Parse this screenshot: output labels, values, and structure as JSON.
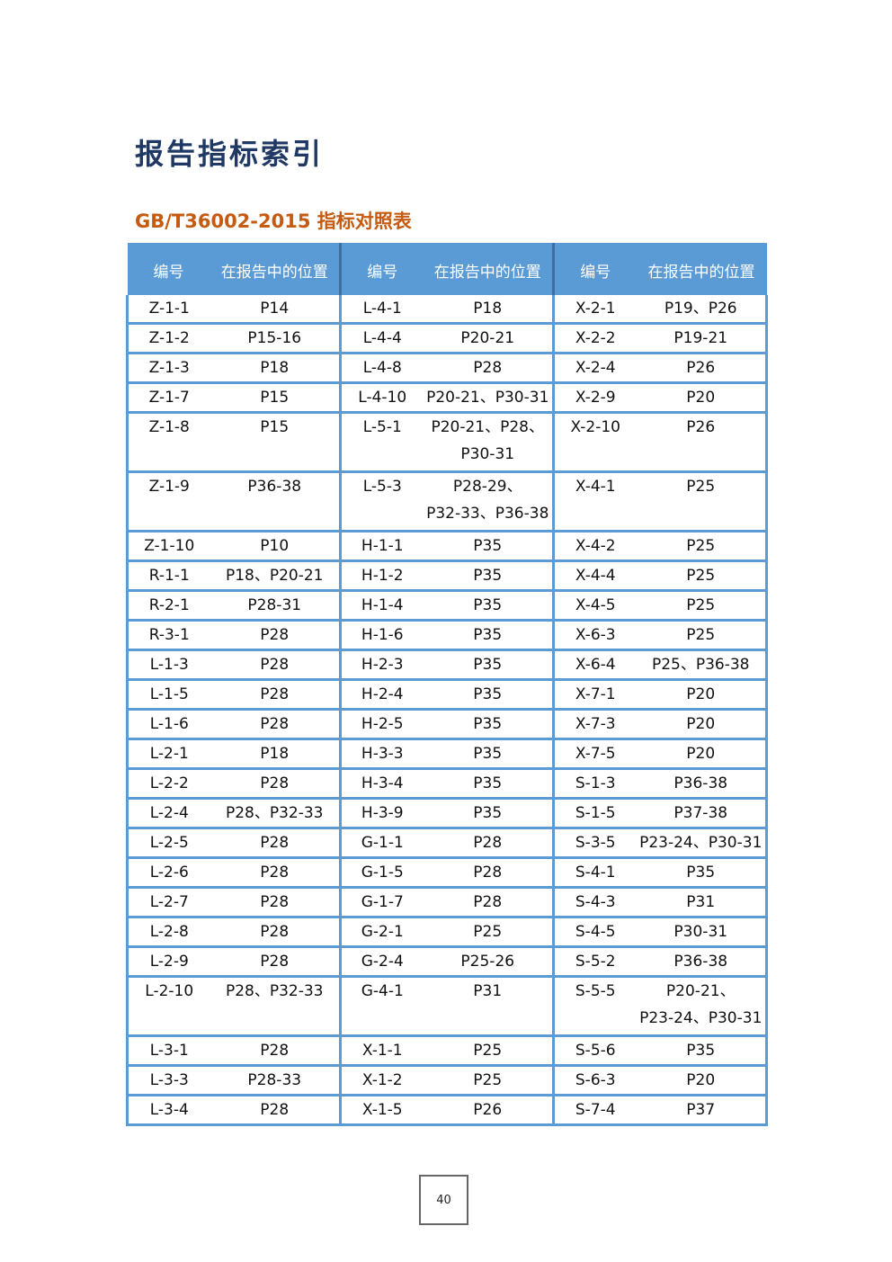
{
  "page_title": "报告指标索引",
  "section_title": "GB/T36002-2015 指标对照表",
  "table": {
    "headers": [
      "编号",
      "在报告中的位置",
      "编号",
      "在报告中的位置",
      "编号",
      "在报告中的位置"
    ],
    "rows": [
      [
        {
          "c": "Z-1-1"
        },
        {
          "c": "P14"
        },
        {
          "c": "L-4-1"
        },
        {
          "c": "P18"
        },
        {
          "c": "X-2-1"
        },
        {
          "c": "P19、P26"
        }
      ],
      [
        {
          "c": "Z-1-2"
        },
        {
          "c": "P15-16"
        },
        {
          "c": "L-4-4"
        },
        {
          "c": "P20-21"
        },
        {
          "c": "X-2-2"
        },
        {
          "c": "P19-21"
        }
      ],
      [
        {
          "c": "Z-1-3"
        },
        {
          "c": "P18"
        },
        {
          "c": "L-4-8"
        },
        {
          "c": "P28"
        },
        {
          "c": "X-2-4"
        },
        {
          "c": "P26"
        }
      ],
      [
        {
          "c": "Z-1-7"
        },
        {
          "c": "P15"
        },
        {
          "c": "L-4-10"
        },
        {
          "c": "P20-21、P30-31"
        },
        {
          "c": "X-2-9"
        },
        {
          "c": "P20"
        }
      ],
      [
        {
          "c": "Z-1-8"
        },
        {
          "c": "P15"
        },
        {
          "c": "L-5-1"
        },
        {
          "c": "P20-21、P28、",
          "c2": "P30-31"
        },
        {
          "c": "X-2-10"
        },
        {
          "c": "P26"
        }
      ],
      [
        {
          "c": "Z-1-9"
        },
        {
          "c": "P36-38"
        },
        {
          "c": "L-5-3"
        },
        {
          "c": "P28-29、",
          "c2": "P32-33、P36-38"
        },
        {
          "c": "X-4-1"
        },
        {
          "c": "P25"
        }
      ],
      [
        {
          "c": "Z-1-10"
        },
        {
          "c": "P10"
        },
        {
          "c": "H-1-1"
        },
        {
          "c": "P35"
        },
        {
          "c": "X-4-2"
        },
        {
          "c": "P25"
        }
      ],
      [
        {
          "c": "R-1-1"
        },
        {
          "c": "P18、P20-21"
        },
        {
          "c": "H-1-2"
        },
        {
          "c": "P35"
        },
        {
          "c": "X-4-4"
        },
        {
          "c": "P25"
        }
      ],
      [
        {
          "c": "R-2-1"
        },
        {
          "c": "P28-31"
        },
        {
          "c": "H-1-4"
        },
        {
          "c": "P35"
        },
        {
          "c": "X-4-5"
        },
        {
          "c": "P25"
        }
      ],
      [
        {
          "c": "R-3-1"
        },
        {
          "c": "P28"
        },
        {
          "c": "H-1-6"
        },
        {
          "c": "P35"
        },
        {
          "c": "X-6-3"
        },
        {
          "c": "P25"
        }
      ],
      [
        {
          "c": "L-1-3"
        },
        {
          "c": "P28"
        },
        {
          "c": "H-2-3"
        },
        {
          "c": "P35"
        },
        {
          "c": "X-6-4"
        },
        {
          "c": "P25、P36-38"
        }
      ],
      [
        {
          "c": "L-1-5"
        },
        {
          "c": "P28"
        },
        {
          "c": "H-2-4"
        },
        {
          "c": "P35"
        },
        {
          "c": "X-7-1"
        },
        {
          "c": "P20"
        }
      ],
      [
        {
          "c": "L-1-6"
        },
        {
          "c": "P28"
        },
        {
          "c": "H-2-5"
        },
        {
          "c": "P35"
        },
        {
          "c": "X-7-3"
        },
        {
          "c": "P20"
        }
      ],
      [
        {
          "c": "L-2-1"
        },
        {
          "c": "P18"
        },
        {
          "c": "H-3-3"
        },
        {
          "c": "P35"
        },
        {
          "c": "X-7-5"
        },
        {
          "c": "P20"
        }
      ],
      [
        {
          "c": "L-2-2"
        },
        {
          "c": "P28"
        },
        {
          "c": "H-3-4"
        },
        {
          "c": "P35"
        },
        {
          "c": "S-1-3"
        },
        {
          "c": "P36-38"
        }
      ],
      [
        {
          "c": "L-2-4"
        },
        {
          "c": "P28、P32-33"
        },
        {
          "c": "H-3-9"
        },
        {
          "c": "P35"
        },
        {
          "c": "S-1-5"
        },
        {
          "c": "P37-38"
        }
      ],
      [
        {
          "c": "L-2-5"
        },
        {
          "c": "P28"
        },
        {
          "c": "G-1-1"
        },
        {
          "c": "P28"
        },
        {
          "c": "S-3-5"
        },
        {
          "c": "P23-24、P30-31"
        }
      ],
      [
        {
          "c": "L-2-6"
        },
        {
          "c": "P28"
        },
        {
          "c": "G-1-5"
        },
        {
          "c": "P28"
        },
        {
          "c": "S-4-1"
        },
        {
          "c": "P35"
        }
      ],
      [
        {
          "c": "L-2-7"
        },
        {
          "c": "P28"
        },
        {
          "c": "G-1-7"
        },
        {
          "c": "P28"
        },
        {
          "c": "S-4-3"
        },
        {
          "c": "P31"
        }
      ],
      [
        {
          "c": "L-2-8"
        },
        {
          "c": "P28"
        },
        {
          "c": "G-2-1"
        },
        {
          "c": "P25"
        },
        {
          "c": "S-4-5"
        },
        {
          "c": "P30-31"
        }
      ],
      [
        {
          "c": "L-2-9"
        },
        {
          "c": "P28"
        },
        {
          "c": "G-2-4"
        },
        {
          "c": "P25-26"
        },
        {
          "c": "S-5-2"
        },
        {
          "c": "P36-38"
        }
      ],
      [
        {
          "c": "L-2-10"
        },
        {
          "c": "P28、P32-33"
        },
        {
          "c": "G-4-1"
        },
        {
          "c": "P31"
        },
        {
          "c": "S-5-5"
        },
        {
          "c": "P20-21、",
          "c2": "P23-24、P30-31"
        }
      ],
      [
        {
          "c": "L-3-1"
        },
        {
          "c": "P28"
        },
        {
          "c": "X-1-1"
        },
        {
          "c": "P25"
        },
        {
          "c": "S-5-6"
        },
        {
          "c": "P35"
        }
      ],
      [
        {
          "c": "L-3-3"
        },
        {
          "c": "P28-33"
        },
        {
          "c": "X-1-2"
        },
        {
          "c": "P25"
        },
        {
          "c": "S-6-3"
        },
        {
          "c": "P20"
        }
      ],
      [
        {
          "c": "L-3-4"
        },
        {
          "c": "P28"
        },
        {
          "c": "X-1-5"
        },
        {
          "c": "P26"
        },
        {
          "c": "S-7-4"
        },
        {
          "c": "P37"
        }
      ]
    ]
  },
  "page_number": "40",
  "colors": {
    "header_bg": "#5b9bd5",
    "title": "#1f3864",
    "section_title": "#c55a11"
  }
}
